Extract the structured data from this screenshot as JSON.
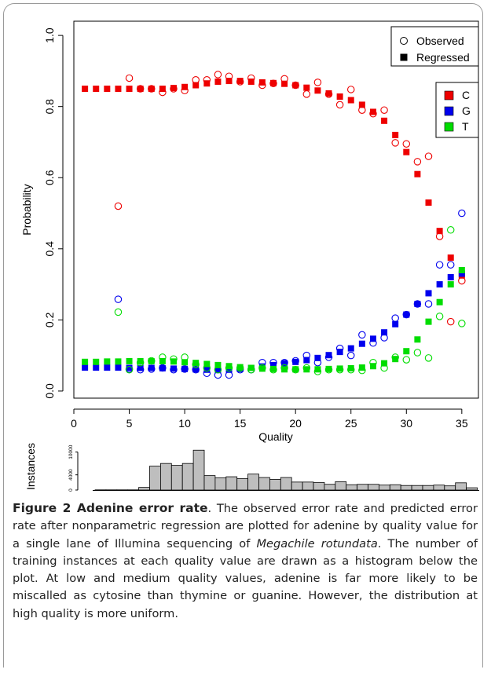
{
  "colors": {
    "C": "#ee0000",
    "G": "#0000ee",
    "T": "#00dd00",
    "bars": "#bebebe"
  },
  "chart_data": [
    {
      "type": "scatter",
      "xlabel": "Quality",
      "ylabel": "Probability",
      "xlim": [
        0,
        36.5
      ],
      "ylim": [
        -0.02,
        1.04
      ],
      "xticks": [
        0,
        5,
        10,
        15,
        20,
        25,
        30,
        35
      ],
      "yticks": [
        0.0,
        0.2,
        0.4,
        0.6,
        0.8,
        1.0
      ],
      "legend_markers": {
        "position": "top-right",
        "items": [
          "Observed",
          "Regressed"
        ]
      },
      "legend_bases": {
        "position": "top-right",
        "items": [
          "C",
          "G",
          "T"
        ]
      },
      "series": [
        {
          "name": "C",
          "marker": "Regressed",
          "x": [
            1,
            2,
            3,
            4,
            5,
            6,
            7,
            8,
            9,
            10,
            11,
            12,
            13,
            14,
            15,
            16,
            17,
            18,
            19,
            20,
            21,
            22,
            23,
            24,
            25,
            26,
            27,
            28,
            29,
            30,
            31,
            32,
            33,
            34,
            35
          ],
          "y": [
            0.85,
            0.85,
            0.85,
            0.85,
            0.85,
            0.85,
            0.85,
            0.85,
            0.852,
            0.855,
            0.86,
            0.865,
            0.87,
            0.872,
            0.872,
            0.87,
            0.868,
            0.866,
            0.864,
            0.86,
            0.853,
            0.845,
            0.837,
            0.828,
            0.818,
            0.805,
            0.785,
            0.76,
            0.72,
            0.672,
            0.61,
            0.53,
            0.45,
            0.375,
            0.325
          ]
        },
        {
          "name": "C",
          "marker": "Observed",
          "x": [
            4,
            5,
            6,
            7,
            8,
            9,
            10,
            11,
            12,
            13,
            14,
            15,
            16,
            17,
            18,
            19,
            20,
            21,
            22,
            23,
            24,
            25,
            26,
            27,
            28,
            29,
            30,
            31,
            32,
            33,
            34,
            35
          ],
          "y": [
            0.52,
            0.88,
            0.85,
            0.85,
            0.84,
            0.85,
            0.845,
            0.875,
            0.875,
            0.89,
            0.885,
            0.87,
            0.88,
            0.86,
            0.865,
            0.878,
            0.86,
            0.835,
            0.868,
            0.835,
            0.805,
            0.848,
            0.79,
            0.78,
            0.79,
            0.698,
            0.695,
            0.645,
            0.66,
            0.435,
            0.195,
            0.31
          ]
        },
        {
          "name": "G",
          "marker": "Regressed",
          "x": [
            1,
            2,
            3,
            4,
            5,
            6,
            7,
            8,
            9,
            10,
            11,
            12,
            13,
            14,
            15,
            16,
            17,
            18,
            19,
            20,
            21,
            22,
            23,
            24,
            25,
            26,
            27,
            28,
            29,
            30,
            31,
            32,
            33,
            34,
            35
          ],
          "y": [
            0.066,
            0.066,
            0.066,
            0.066,
            0.065,
            0.065,
            0.065,
            0.064,
            0.063,
            0.062,
            0.061,
            0.06,
            0.059,
            0.06,
            0.062,
            0.065,
            0.069,
            0.073,
            0.078,
            0.082,
            0.087,
            0.093,
            0.101,
            0.11,
            0.12,
            0.133,
            0.147,
            0.165,
            0.188,
            0.215,
            0.245,
            0.275,
            0.3,
            0.32,
            0.33
          ]
        },
        {
          "name": "G",
          "marker": "Observed",
          "x": [
            4,
            5,
            6,
            7,
            8,
            9,
            10,
            11,
            12,
            13,
            14,
            15,
            16,
            17,
            18,
            19,
            20,
            21,
            22,
            23,
            24,
            25,
            26,
            27,
            28,
            29,
            30,
            31,
            32,
            33,
            34,
            35
          ],
          "y": [
            0.258,
            0.062,
            0.06,
            0.062,
            0.065,
            0.06,
            0.062,
            0.06,
            0.05,
            0.045,
            0.045,
            0.06,
            0.06,
            0.08,
            0.08,
            0.08,
            0.085,
            0.1,
            0.08,
            0.095,
            0.12,
            0.1,
            0.158,
            0.135,
            0.15,
            0.205,
            0.215,
            0.245,
            0.245,
            0.355,
            0.355,
            0.5
          ]
        },
        {
          "name": "T",
          "marker": "Regressed",
          "x": [
            1,
            2,
            3,
            4,
            5,
            6,
            7,
            8,
            9,
            10,
            11,
            12,
            13,
            14,
            15,
            16,
            17,
            18,
            19,
            20,
            21,
            22,
            23,
            24,
            25,
            26,
            27,
            28,
            29,
            30,
            31,
            32,
            33,
            34,
            35
          ],
          "y": [
            0.082,
            0.082,
            0.083,
            0.083,
            0.084,
            0.084,
            0.084,
            0.084,
            0.083,
            0.081,
            0.079,
            0.076,
            0.073,
            0.07,
            0.067,
            0.065,
            0.063,
            0.062,
            0.061,
            0.061,
            0.061,
            0.061,
            0.062,
            0.063,
            0.064,
            0.066,
            0.07,
            0.078,
            0.09,
            0.112,
            0.145,
            0.195,
            0.25,
            0.3,
            0.34
          ]
        },
        {
          "name": "T",
          "marker": "Observed",
          "x": [
            4,
            5,
            6,
            7,
            8,
            9,
            10,
            11,
            12,
            13,
            14,
            15,
            16,
            17,
            18,
            19,
            20,
            21,
            22,
            23,
            24,
            25,
            26,
            27,
            28,
            29,
            30,
            31,
            32,
            33,
            34,
            35
          ],
          "y": [
            0.222,
            0.06,
            0.08,
            0.085,
            0.095,
            0.09,
            0.095,
            0.075,
            0.065,
            0.06,
            0.065,
            0.065,
            0.06,
            0.065,
            0.06,
            0.065,
            0.06,
            0.065,
            0.055,
            0.06,
            0.06,
            0.06,
            0.058,
            0.08,
            0.065,
            0.095,
            0.088,
            0.108,
            0.093,
            0.21,
            0.453,
            0.19
          ]
        }
      ]
    },
    {
      "type": "bar",
      "ylabel": "Instances",
      "yticks": [
        0,
        4000,
        10000
      ],
      "ylim": [
        0,
        12000
      ],
      "categories": [
        1,
        2,
        3,
        4,
        5,
        6,
        7,
        8,
        9,
        10,
        11,
        12,
        13,
        14,
        15,
        16,
        17,
        18,
        19,
        20,
        21,
        22,
        23,
        24,
        25,
        26,
        27,
        28,
        29,
        30,
        31,
        32,
        33,
        34,
        35
      ],
      "values": [
        50,
        50,
        50,
        50,
        700,
        6300,
        7000,
        6500,
        7000,
        10500,
        3800,
        3200,
        3500,
        3000,
        4200,
        3300,
        2800,
        3300,
        2100,
        2100,
        2000,
        1500,
        2200,
        1400,
        1500,
        1500,
        1300,
        1400,
        1200,
        1200,
        1200,
        1300,
        1100,
        1900,
        600
      ]
    }
  ],
  "caption": {
    "figure_label": "Figure 2 Adenine error rate",
    "text_1": ". The observed error rate and predicted error rate after nonparametric regression are plotted for adenine by quality value for a single lane of Illumina sequencing of ",
    "species": "Megachile rotundata",
    "text_2": ". The number of training instances at each quality value are drawn as a histogram below the plot. At low and medium quality values, adenine is far more likely to be miscalled as cytosine than thymine or guanine. However, the distribution at high quality is more uniform."
  }
}
